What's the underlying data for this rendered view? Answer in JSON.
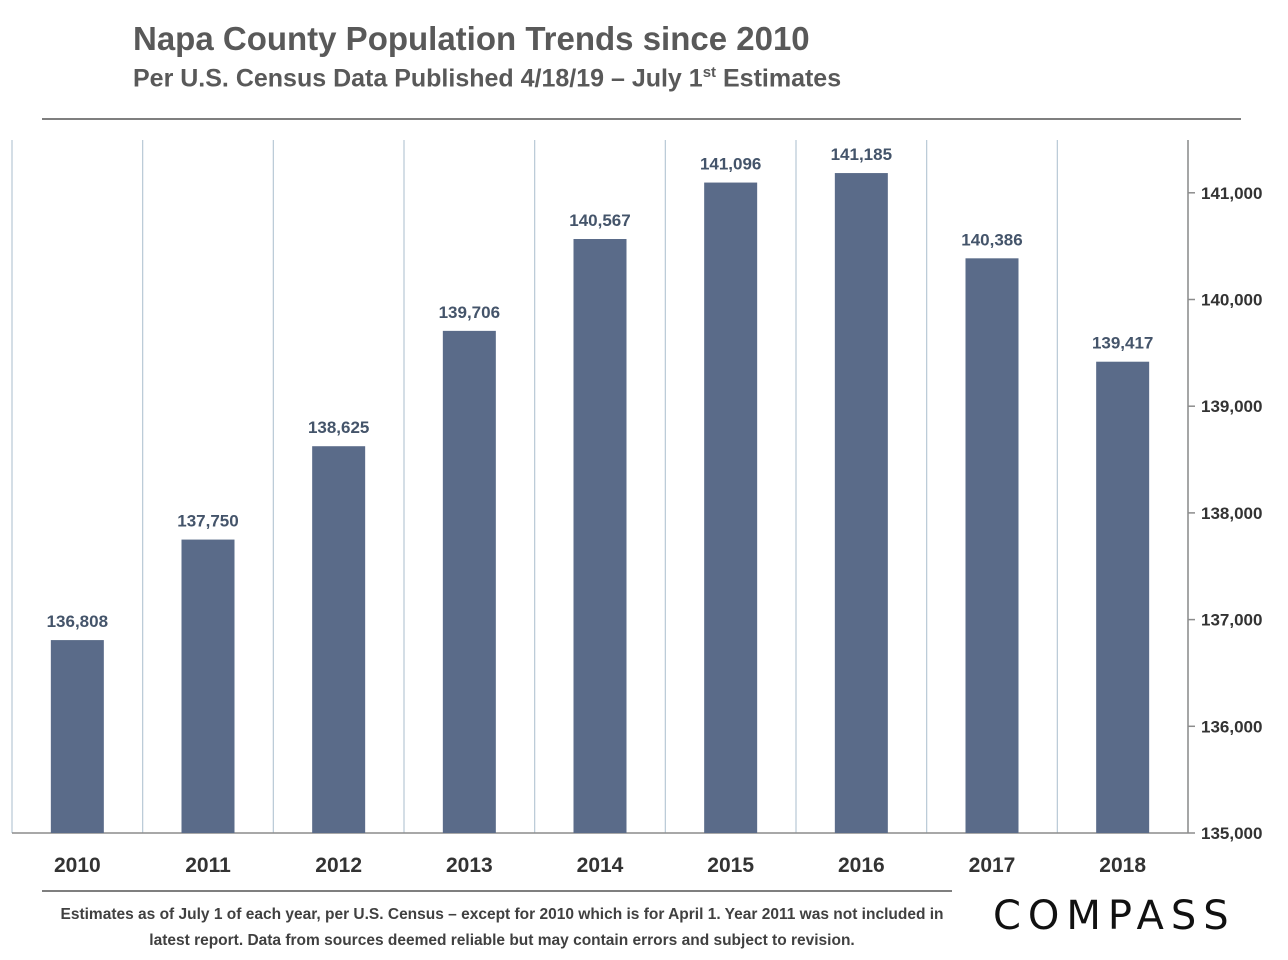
{
  "title": "Napa County Population Trends since 2010",
  "subtitle": {
    "main": "Per U.S. Census Data Published 4/18/19 – July 1",
    "superscript": "st",
    "suffix": " Estimates"
  },
  "footnote": "Estimates as of July 1 of each year, per U.S. Census – except for 2010 which is for April 1. Year 2011 was not included in latest report. Data from sources deemed reliable but may contain errors and subject to revision.",
  "logo": "COMPASS",
  "colors": {
    "bar": "#5a6b89",
    "value_label": "#44546a",
    "grid": "#b7c9d6",
    "text": "#595959",
    "axis_text": "#333333"
  },
  "chart_data": {
    "type": "bar",
    "title": "Napa County Population Trends since 2010",
    "xlabel": "",
    "ylabel": "",
    "categories": [
      "2010",
      "2011",
      "2012",
      "2013",
      "2014",
      "2015",
      "2016",
      "2017",
      "2018"
    ],
    "values": [
      136808,
      137750,
      138625,
      139706,
      140567,
      141096,
      141185,
      140386,
      139417
    ],
    "value_labels": [
      "136,808",
      "137,750",
      "138,625",
      "139,706",
      "140,567",
      "141,096",
      "141,185",
      "140,386",
      "139,417"
    ],
    "ylim": [
      135000,
      141500
    ],
    "yticks": [
      135000,
      136000,
      137000,
      138000,
      139000,
      140000,
      141000
    ],
    "ytick_labels": [
      "135,000",
      "136,000",
      "137,000",
      "138,000",
      "139,000",
      "140,000",
      "141,000"
    ],
    "y_axis_side": "right",
    "grid": "vertical category separators"
  }
}
